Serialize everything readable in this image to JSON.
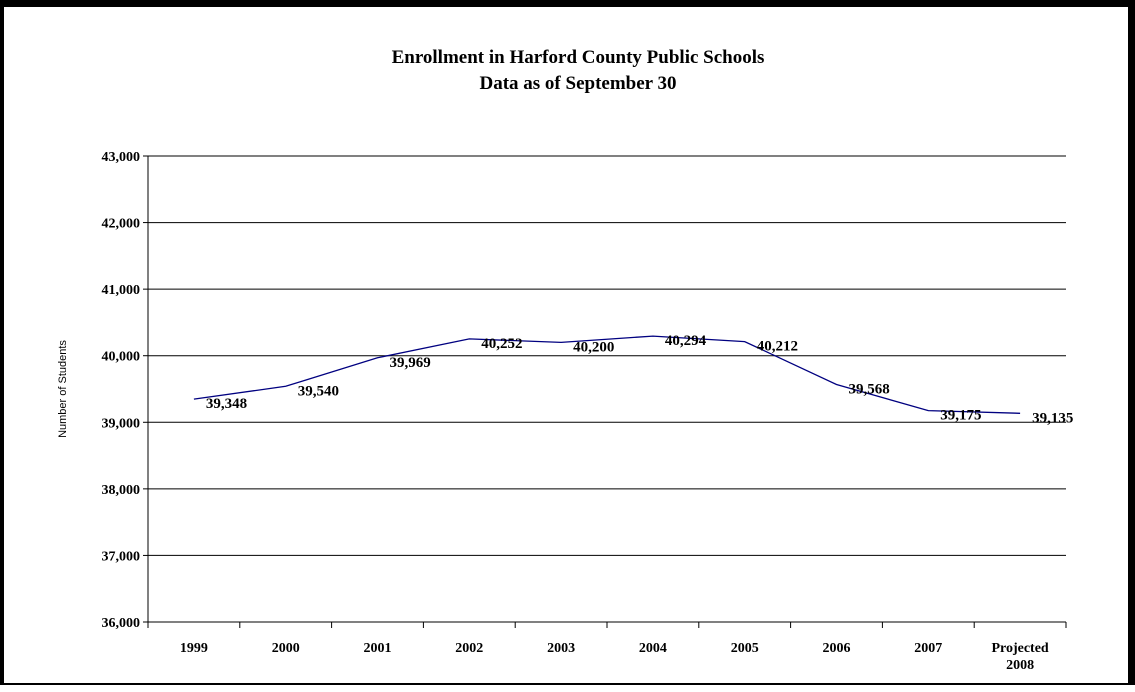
{
  "chart_data": {
    "type": "line",
    "title": "Enrollment in Harford County Public Schools",
    "subtitle": "Data as of September 30",
    "xlabel": "",
    "ylabel": "Number of Students",
    "categories": [
      "1999",
      "2000",
      "2001",
      "2002",
      "2003",
      "2004",
      "2005",
      "2006",
      "2007",
      "Projected 2008"
    ],
    "series": [
      {
        "values": [
          39348,
          39540,
          39969,
          40252,
          40200,
          40294,
          40212,
          39568,
          39175,
          39135
        ],
        "data_labels": [
          "39,348",
          "39,540",
          "39,969",
          "40,252",
          "40,200",
          "40,294",
          "40,212",
          "39,568",
          "39,175",
          "39,135"
        ],
        "color": "#000080"
      }
    ],
    "ylim": [
      36000,
      43000
    ],
    "y_ticks": [
      36000,
      37000,
      38000,
      39000,
      40000,
      41000,
      42000,
      43000
    ],
    "y_tick_labels": [
      "36,000",
      "37,000",
      "38,000",
      "39,000",
      "40,000",
      "41,000",
      "42,000",
      "43,000"
    ],
    "grid": true,
    "legend": "none"
  }
}
